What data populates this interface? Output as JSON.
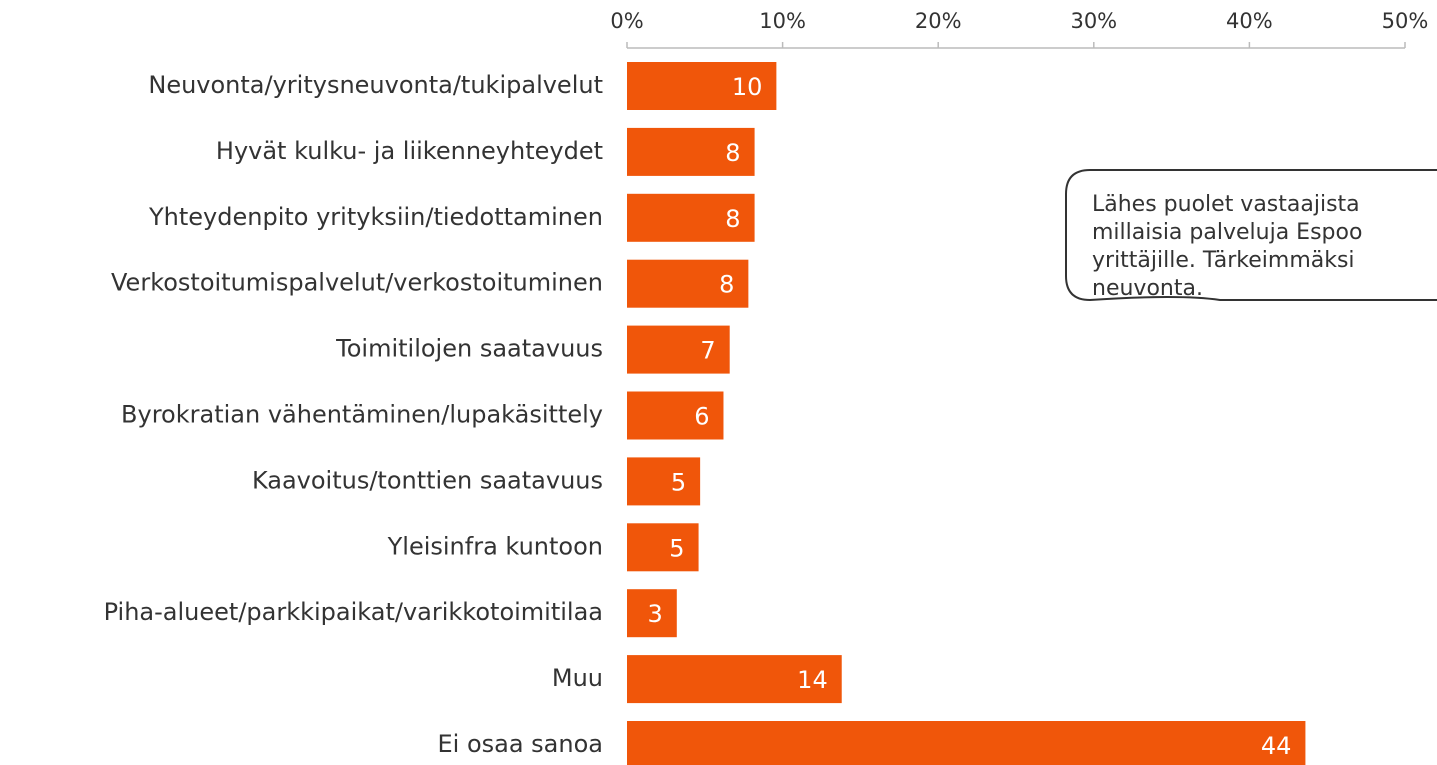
{
  "chart_data": {
    "type": "bar",
    "orientation": "horizontal",
    "categories": [
      "Neuvonta/yritysneuvonta/tukipalvelut",
      "Hyvät kulku- ja liikenneyhteydet",
      "Yhteydenpito yrityksiin/tiedottaminen",
      "Verkostoitumispalvelut/verkostoituminen",
      "Toimitilojen saatavuus",
      "Byrokratian vähentäminen/lupakäsittely",
      "Kaavoitus/tonttien saatavuus",
      "Yleisinfra kuntoon",
      "Piha-alueet/parkkipaikat/varikkotoimitilaa",
      "Muu",
      "Ei osaa sanoa"
    ],
    "values": [
      9.6,
      8.2,
      8.2,
      7.8,
      6.6,
      6.2,
      4.7,
      4.6,
      3.2,
      13.8,
      43.6
    ],
    "value_labels": [
      "10",
      "8",
      "8",
      "8",
      "7",
      "6",
      "5",
      "5",
      "3",
      "14",
      "44"
    ],
    "color": "#f0560a",
    "xlim": [
      0,
      50
    ],
    "xticks": [
      {
        "value": 0,
        "label": "0%"
      },
      {
        "value": 10,
        "label": "10%"
      },
      {
        "value": 20,
        "label": "20%"
      },
      {
        "value": 30,
        "label": "30%"
      },
      {
        "value": 40,
        "label": "40%"
      },
      {
        "value": 50,
        "label": "50%"
      }
    ],
    "annotation": [
      "Lähes puolet vastaajista",
      "millaisia palveluja Espoo",
      "yrittäjille. Tärkeimmäksi",
      "neuvonta."
    ]
  }
}
